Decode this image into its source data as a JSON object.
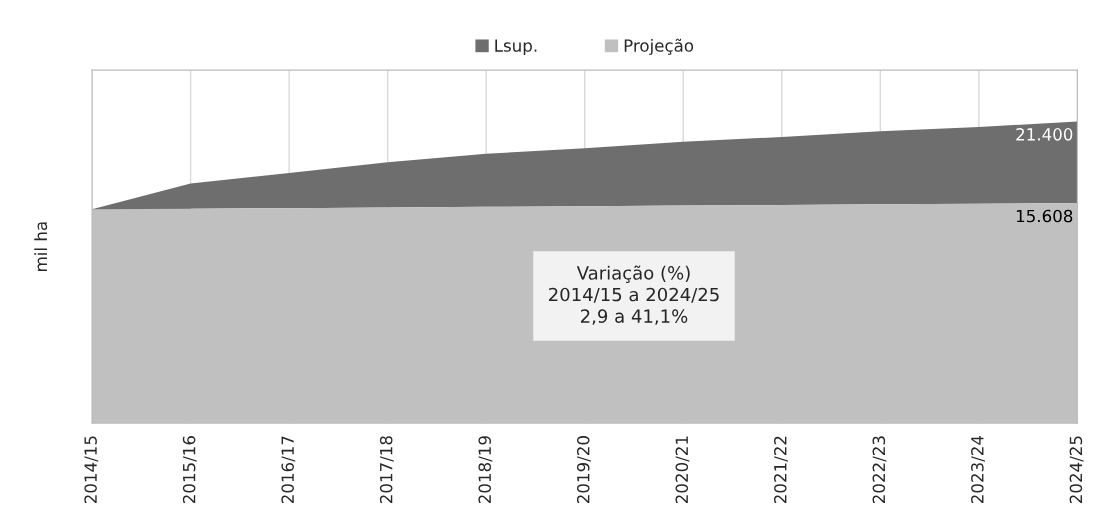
{
  "chart_data": {
    "type": "area",
    "ylabel": "mil ha",
    "categories": [
      "2014/15",
      "2015/16",
      "2016/17",
      "2017/18",
      "2018/19",
      "2019/20",
      "2020/21",
      "2021/22",
      "2022/23",
      "2023/24",
      "2024/25"
    ],
    "series": [
      {
        "name": "Lsup.",
        "color": "#6e6e6e",
        "values": [
          15168,
          17000,
          17750,
          18500,
          19100,
          19500,
          19950,
          20300,
          20700,
          21000,
          21400
        ],
        "value_labels": [
          null,
          null,
          null,
          null,
          null,
          null,
          null,
          null,
          null,
          null,
          "21.400"
        ]
      },
      {
        "name": "Projeção",
        "color": "#c0c0c0",
        "values": [
          15168,
          15210,
          15250,
          15300,
          15340,
          15390,
          15430,
          15470,
          15520,
          15560,
          15608
        ],
        "value_labels": [
          null,
          null,
          null,
          null,
          null,
          null,
          null,
          null,
          null,
          null,
          "15.608"
        ]
      }
    ],
    "tick_labels": "x",
    "grid": "x",
    "legend": "top",
    "annotations": [
      "Variação (%)\n2014/15 a 2024/25\n2,9 a 41,1%"
    ]
  }
}
